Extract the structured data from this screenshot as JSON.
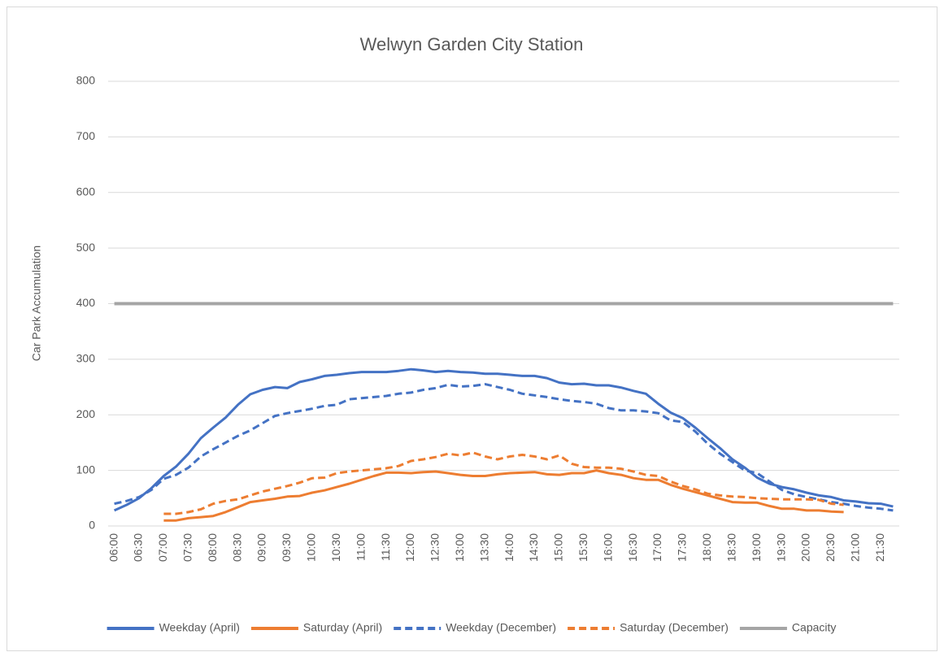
{
  "chart_data": {
    "type": "line",
    "title": "Welwyn Garden City Station",
    "y_label": "Car Park Accumulation",
    "categories": [
      "06:00",
      null,
      "06:30",
      null,
      "07:00",
      null,
      "07:30",
      null,
      "08:00",
      null,
      "08:30",
      null,
      "09:00",
      null,
      "09:30",
      null,
      "10:00",
      null,
      "10:30",
      null,
      "11:00",
      null,
      "11:30",
      null,
      "12:00",
      null,
      "12:30",
      null,
      "13:00",
      null,
      "13:30",
      null,
      "14:00",
      null,
      "14:30",
      null,
      "15:00",
      null,
      "15:30",
      null,
      "16:00",
      null,
      "16:30",
      null,
      "17:00",
      null,
      "17:30",
      null,
      "18:00",
      null,
      "18:30",
      null,
      "19:00",
      null,
      "19:30",
      null,
      "20:00",
      null,
      "20:30",
      null,
      "21:00",
      null,
      "21:30",
      null
    ],
    "series": [
      {
        "name": "Weekday (April)",
        "color": "#4472c4",
        "dashed": false,
        "values": [
          28,
          38,
          50,
          68,
          90,
          107,
          130,
          158,
          177,
          195,
          218,
          237,
          245,
          250,
          248,
          259,
          264,
          270,
          272,
          275,
          277,
          277,
          277,
          279,
          282,
          280,
          277,
          279,
          277,
          276,
          274,
          274,
          272,
          270,
          270,
          266,
          258,
          255,
          256,
          253,
          253,
          249,
          243,
          238,
          220,
          204,
          194,
          177,
          158,
          140,
          120,
          105,
          87,
          76,
          70,
          66,
          60,
          55,
          52,
          46,
          44,
          41,
          40,
          35
        ]
      },
      {
        "name": "Saturday (April)",
        "color": "#ed7d31",
        "dashed": false,
        "values": [
          null,
          null,
          null,
          null,
          10,
          10,
          14,
          16,
          18,
          25,
          34,
          43,
          46,
          49,
          53,
          54,
          60,
          64,
          70,
          76,
          83,
          90,
          96,
          96,
          95,
          97,
          98,
          95,
          92,
          90,
          90,
          93,
          95,
          96,
          97,
          93,
          92,
          95,
          95,
          100,
          95,
          92,
          86,
          83,
          83,
          74,
          67,
          61,
          55,
          49,
          43,
          42,
          42,
          36,
          31,
          31,
          28,
          28,
          26,
          25,
          null,
          null,
          null,
          null
        ]
      },
      {
        "name": "Weekday (December)",
        "color": "#4472c4",
        "dashed": true,
        "values": [
          40,
          45,
          52,
          65,
          85,
          92,
          105,
          125,
          138,
          150,
          162,
          172,
          185,
          198,
          203,
          207,
          211,
          216,
          218,
          228,
          230,
          232,
          234,
          238,
          240,
          245,
          248,
          254,
          251,
          252,
          255,
          250,
          245,
          238,
          235,
          232,
          228,
          225,
          223,
          220,
          212,
          208,
          208,
          206,
          203,
          190,
          187,
          170,
          148,
          130,
          115,
          100,
          95,
          80,
          65,
          57,
          52,
          48,
          43,
          40,
          36,
          33,
          31,
          28
        ]
      },
      {
        "name": "Saturday (December)",
        "color": "#ed7d31",
        "dashed": true,
        "values": [
          null,
          null,
          null,
          null,
          22,
          22,
          25,
          30,
          40,
          45,
          48,
          55,
          62,
          67,
          72,
          78,
          86,
          87,
          95,
          98,
          100,
          102,
          104,
          108,
          117,
          120,
          124,
          130,
          127,
          132,
          125,
          120,
          125,
          128,
          125,
          120,
          127,
          112,
          106,
          105,
          105,
          103,
          98,
          92,
          90,
          80,
          72,
          66,
          58,
          55,
          53,
          52,
          50,
          49,
          48,
          48,
          48,
          47,
          40,
          38,
          null,
          null,
          null,
          null
        ]
      },
      {
        "name": "Capacity",
        "color": "#a5a5a5",
        "dashed": false,
        "values": [
          400,
          400,
          400,
          400,
          400,
          400,
          400,
          400,
          400,
          400,
          400,
          400,
          400,
          400,
          400,
          400,
          400,
          400,
          400,
          400,
          400,
          400,
          400,
          400,
          400,
          400,
          400,
          400,
          400,
          400,
          400,
          400,
          400,
          400,
          400,
          400,
          400,
          400,
          400,
          400,
          400,
          400,
          400,
          400,
          400,
          400,
          400,
          400,
          400,
          400,
          400,
          400,
          400,
          400,
          400,
          400,
          400,
          400,
          400,
          400,
          400,
          400,
          400,
          400
        ]
      }
    ],
    "ylim": [
      0,
      800
    ],
    "yticks": [
      0,
      100,
      200,
      300,
      400,
      500,
      600,
      700,
      800
    ],
    "grid": true,
    "legend": "bottom"
  }
}
